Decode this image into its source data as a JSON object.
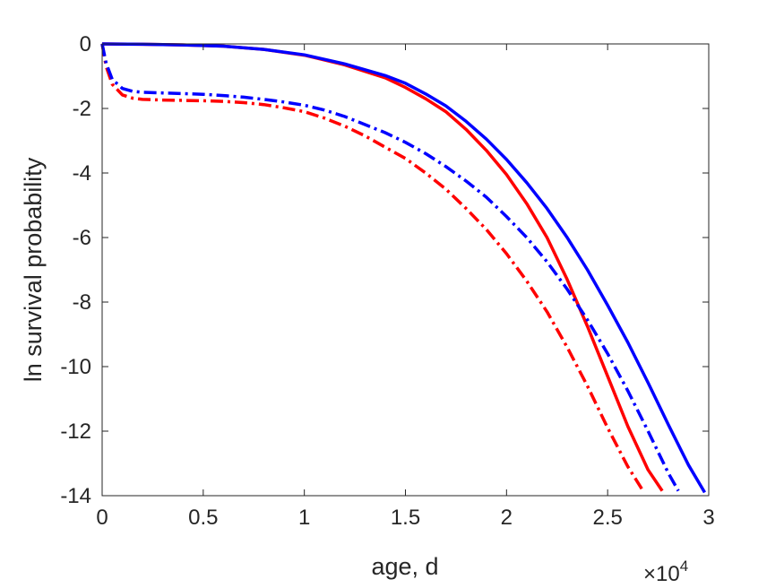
{
  "chart_data": {
    "type": "line",
    "title": "",
    "xlabel": "age, d",
    "ylabel": "ln survival probability",
    "x_exponent_label": "×10",
    "x_exponent_power": "4",
    "xlim": [
      0,
      30000
    ],
    "ylim": [
      -14,
      0
    ],
    "grid": false,
    "legend": "none",
    "xticks": [
      0,
      5000,
      10000,
      15000,
      20000,
      25000,
      30000
    ],
    "xtick_labels": [
      "0",
      "0.5",
      "1",
      "1.5",
      "2",
      "2.5",
      "3"
    ],
    "yticks": [
      0,
      -2,
      -4,
      -6,
      -8,
      -10,
      -12,
      -14
    ],
    "ytick_labels": [
      "0",
      "-2",
      "-4",
      "-6",
      "-8",
      "-10",
      "-12",
      "-14"
    ],
    "series": [
      {
        "color": "#ff0000",
        "style": "solid",
        "x": [
          0,
          2000,
          4000,
          6000,
          8000,
          10000,
          12000,
          14000,
          15000,
          16000,
          17000,
          18000,
          19000,
          20000,
          21000,
          22000,
          23000,
          24000,
          25000,
          26000,
          27000,
          27700
        ],
        "y": [
          0,
          -0.01,
          -0.03,
          -0.07,
          -0.17,
          -0.35,
          -0.65,
          -1.05,
          -1.35,
          -1.7,
          -2.1,
          -2.65,
          -3.3,
          -4.05,
          -4.95,
          -6.0,
          -7.3,
          -8.75,
          -10.3,
          -11.85,
          -13.2,
          -13.85
        ]
      },
      {
        "color": "#0000ff",
        "style": "solid",
        "x": [
          0,
          2000,
          4000,
          6000,
          8000,
          10000,
          12000,
          14000,
          15000,
          16000,
          17000,
          18000,
          19000,
          20000,
          21000,
          22000,
          23000,
          24000,
          25000,
          26000,
          27000,
          28000,
          29000,
          29800
        ],
        "y": [
          0,
          -0.01,
          -0.03,
          -0.07,
          -0.17,
          -0.34,
          -0.62,
          -0.98,
          -1.22,
          -1.55,
          -1.92,
          -2.4,
          -2.95,
          -3.58,
          -4.3,
          -5.1,
          -6.0,
          -7.0,
          -8.1,
          -9.25,
          -10.5,
          -11.8,
          -13.05,
          -13.9
        ]
      },
      {
        "color": "#ff0000",
        "style": "dash-dot",
        "x": [
          0,
          200,
          500,
          1000,
          1500,
          2000,
          3000,
          4000,
          5000,
          6000,
          7000,
          8000,
          9000,
          10000,
          11000,
          12000,
          13000,
          14000,
          15000,
          16000,
          17000,
          18000,
          19000,
          20000,
          21000,
          22000,
          23000,
          24000,
          25000,
          26000,
          26800
        ],
        "y": [
          0,
          -0.7,
          -1.25,
          -1.58,
          -1.68,
          -1.72,
          -1.74,
          -1.75,
          -1.76,
          -1.78,
          -1.82,
          -1.88,
          -1.98,
          -2.1,
          -2.3,
          -2.55,
          -2.85,
          -3.2,
          -3.55,
          -4.0,
          -4.5,
          -5.1,
          -5.75,
          -6.5,
          -7.35,
          -8.3,
          -9.4,
          -10.6,
          -11.9,
          -13.1,
          -13.9
        ]
      },
      {
        "color": "#0000ff",
        "style": "dash-dot",
        "x": [
          0,
          200,
          500,
          1000,
          1500,
          2000,
          3000,
          4000,
          5000,
          6000,
          7000,
          8000,
          9000,
          10000,
          11000,
          12000,
          13000,
          14000,
          15000,
          16000,
          17000,
          18000,
          19000,
          20000,
          21000,
          22000,
          23000,
          24000,
          25000,
          26000,
          27000,
          28000,
          28500
        ],
        "y": [
          0,
          -0.6,
          -1.1,
          -1.38,
          -1.47,
          -1.5,
          -1.52,
          -1.54,
          -1.56,
          -1.6,
          -1.65,
          -1.72,
          -1.8,
          -1.9,
          -2.05,
          -2.25,
          -2.5,
          -2.75,
          -3.05,
          -3.4,
          -3.8,
          -4.25,
          -4.75,
          -5.35,
          -6.0,
          -6.75,
          -7.6,
          -8.55,
          -9.6,
          -10.75,
          -12.0,
          -13.3,
          -13.85
        ]
      }
    ]
  }
}
